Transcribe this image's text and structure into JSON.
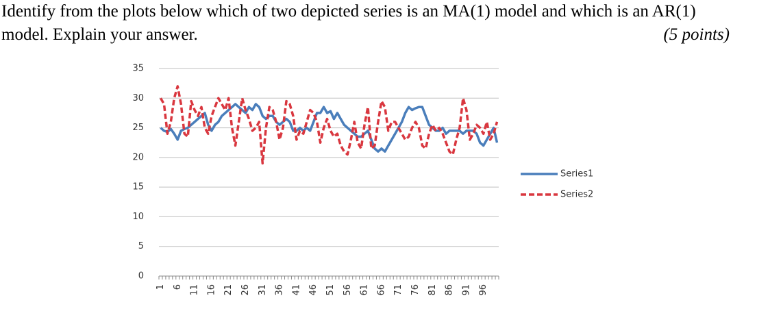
{
  "question": {
    "text": "Identify from the plots below which of two depicted series is an MA(1) model and which is an AR(1) model. Explain your answer.",
    "points": "(5 points)"
  },
  "chart_data": {
    "type": "line",
    "categories": [
      1,
      null,
      null,
      null,
      null,
      6,
      null,
      null,
      null,
      null,
      11,
      null,
      null,
      null,
      null,
      16,
      null,
      null,
      null,
      null,
      21,
      null,
      null,
      null,
      null,
      26,
      null,
      null,
      null,
      null,
      31,
      null,
      null,
      null,
      null,
      36,
      null,
      null,
      null,
      null,
      41,
      null,
      null,
      null,
      null,
      46,
      null,
      null,
      null,
      null,
      51,
      null,
      null,
      null,
      null,
      56,
      null,
      null,
      null,
      null,
      61,
      null,
      null,
      null,
      null,
      66,
      null,
      null,
      null,
      null,
      71,
      null,
      null,
      null,
      null,
      76,
      null,
      null,
      null,
      null,
      81,
      null,
      null,
      null,
      null,
      86,
      null,
      null,
      null,
      null,
      91,
      null,
      null,
      null,
      null,
      96,
      null,
      null,
      null,
      null
    ],
    "series": [
      {
        "name": "Series1",
        "color": "#4a7ebb",
        "dash": false,
        "values": [
          25,
          24.5,
          24.3,
          24.8,
          24,
          23,
          24.5,
          24.8,
          25,
          25.5,
          26,
          26.5,
          27,
          27.5,
          25.5,
          24.5,
          25.5,
          26,
          27,
          27.5,
          28,
          28.5,
          29,
          28.5,
          28,
          27.5,
          28.5,
          28,
          29,
          28.5,
          27,
          26.5,
          27,
          27,
          26,
          25.5,
          26,
          26.5,
          26,
          24.5,
          24.5,
          25,
          24.5,
          25,
          24.5,
          26,
          27.5,
          27.5,
          28.5,
          27.5,
          27.8,
          26.5,
          27.5,
          26.5,
          25.5,
          25,
          24.5,
          24,
          23.5,
          23.5,
          24,
          24.5,
          23,
          21.5,
          21,
          21.5,
          21,
          22,
          23,
          24,
          25,
          26,
          27.5,
          28.5,
          28,
          28.3,
          28.5,
          28.5,
          27,
          25.5,
          25,
          24.5,
          24.5,
          25,
          24,
          24.5,
          24.5,
          24.5,
          24.5,
          24,
          24.5,
          24.5,
          24.5,
          24,
          22.5,
          22,
          23,
          24,
          25,
          22.5
        ]
      },
      {
        "name": "Series2",
        "color": "#d9373f",
        "dash": true,
        "values": [
          30,
          29,
          24,
          26,
          30,
          32,
          29,
          24,
          23.5,
          29.5,
          28,
          27,
          28.5,
          25,
          24,
          27,
          28.5,
          30,
          29,
          28,
          30,
          25,
          22,
          26,
          30,
          28,
          26.5,
          24.5,
          25,
          26,
          19,
          25,
          28.5,
          28,
          26,
          23,
          25,
          29.5,
          29,
          27,
          23,
          24.5,
          24,
          26,
          28,
          27.5,
          26,
          22.5,
          25,
          26.5,
          24.5,
          23.5,
          24,
          22,
          21,
          20.5,
          23,
          26,
          22.5,
          21.5,
          25.5,
          28.5,
          21.5,
          22,
          26,
          29.5,
          28.5,
          24.5,
          26,
          26,
          25,
          24,
          23,
          23.5,
          25,
          26,
          25,
          22,
          21.5,
          24,
          25.5,
          24.5,
          25,
          24,
          22.5,
          21,
          20.5,
          23,
          25,
          30,
          28,
          23,
          24,
          25.5,
          25,
          24,
          26,
          23,
          24,
          26
        ]
      }
    ],
    "ylim": [
      0,
      35
    ],
    "yticks": [
      0,
      5,
      10,
      15,
      20,
      25,
      30,
      35
    ],
    "grid": true,
    "legend": "right"
  }
}
